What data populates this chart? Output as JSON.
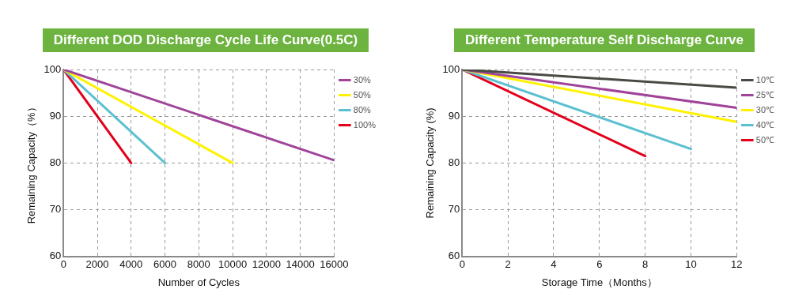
{
  "chart_data": [
    {
      "type": "line",
      "title": "Different DOD Discharge Cycle Life Curve(0.5C)",
      "xlabel": "Number of Cycles",
      "ylabel": "Remaining Capacity（%）",
      "xlim": [
        0,
        16000
      ],
      "xticks": [
        0,
        2000,
        4000,
        6000,
        8000,
        10000,
        12000,
        14000,
        16000
      ],
      "ylim": [
        60,
        100
      ],
      "yticks": [
        60,
        70,
        80,
        90,
        100
      ],
      "grid": true,
      "legend": "top right",
      "series": [
        {
          "name": "30%",
          "color": "#a0449a",
          "x": [
            0,
            16000
          ],
          "values": [
            100,
            80.6
          ]
        },
        {
          "name": "50%",
          "color": "#fff200",
          "x": [
            0,
            10000
          ],
          "values": [
            100,
            80
          ]
        },
        {
          "name": "80%",
          "color": "#5bc0d0",
          "x": [
            0,
            6000
          ],
          "values": [
            100,
            80
          ]
        },
        {
          "name": "100%",
          "color": "#e3001b",
          "x": [
            0,
            4000
          ],
          "values": [
            100,
            80
          ]
        }
      ]
    },
    {
      "type": "line",
      "title": "Different Temperature Self Discharge Curve",
      "xlabel": "Storage Time（Months）",
      "ylabel": "Remaining Capacity (%)",
      "xlim": [
        0,
        12
      ],
      "xticks": [
        0,
        2,
        4,
        6,
        8,
        10,
        12
      ],
      "ylim": [
        60,
        100
      ],
      "yticks": [
        60,
        70,
        80,
        90,
        100
      ],
      "grid": true,
      "legend": "top right",
      "series": [
        {
          "name": "10℃",
          "color": "#4a4a44",
          "x": [
            0,
            12
          ],
          "values": [
            100,
            96.1
          ]
        },
        {
          "name": "25℃",
          "color": "#a0449a",
          "x": [
            0,
            12
          ],
          "values": [
            100,
            91.8
          ]
        },
        {
          "name": "30℃",
          "color": "#fff200",
          "x": [
            0,
            12
          ],
          "values": [
            100,
            88.8
          ]
        },
        {
          "name": "40℃",
          "color": "#5bc0d0",
          "x": [
            0,
            10
          ],
          "values": [
            100,
            83
          ]
        },
        {
          "name": "50℃",
          "color": "#e3001b",
          "x": [
            0,
            8
          ],
          "values": [
            100,
            81.5
          ]
        }
      ]
    }
  ]
}
